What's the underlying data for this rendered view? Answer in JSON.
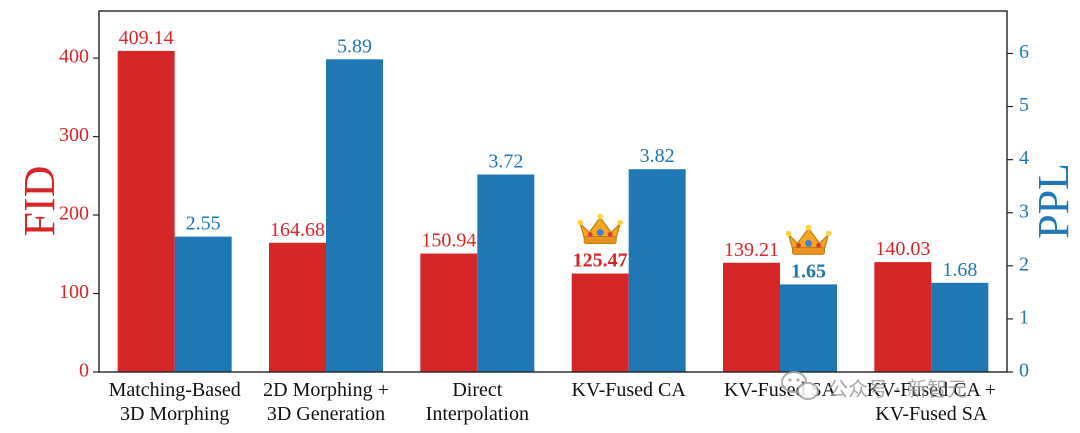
{
  "chart_data": {
    "type": "bar",
    "categories": [
      [
        "Matching-Based",
        "3D Morphing"
      ],
      [
        "2D Morphing +",
        "3D Generation"
      ],
      [
        "Direct",
        "Interpolation"
      ],
      [
        "KV-Fused CA"
      ],
      [
        "KV-Fused SA"
      ],
      [
        "KV-Fused CA +",
        "KV-Fused SA"
      ]
    ],
    "series": [
      {
        "name": "FID",
        "axis": "left",
        "color": "#d62728",
        "values": [
          409.14,
          164.68,
          150.94,
          125.47,
          139.21,
          140.03
        ],
        "labels": [
          "409.14",
          "164.68",
          "150.94",
          "125.47",
          "139.21",
          "140.03"
        ]
      },
      {
        "name": "PPL",
        "axis": "right",
        "color": "#1f77b4",
        "values": [
          2.55,
          5.89,
          3.72,
          3.82,
          1.65,
          1.68
        ],
        "labels": [
          "2.55",
          "5.89",
          "3.72",
          "3.82",
          "1.65",
          "1.68"
        ]
      }
    ],
    "best": {
      "FID_index": 3,
      "PPL_index": 4
    },
    "y_left": {
      "label": "FID",
      "ylim": [
        0,
        460
      ],
      "ticks": [
        "0",
        "100",
        "200",
        "300",
        "400"
      ],
      "color": "#d62728"
    },
    "y_right": {
      "label": "PPL",
      "ylim": [
        0,
        6.8
      ],
      "ticks": [
        "0",
        "1",
        "2",
        "3",
        "4",
        "5",
        "6"
      ],
      "color": "#1f77b4"
    },
    "grid": false,
    "annotations": [
      {
        "icon": "crown-icon",
        "series": "FID",
        "index": 3
      },
      {
        "icon": "crown-icon",
        "series": "PPL",
        "index": 4
      }
    ]
  },
  "watermark": {
    "text": "公众号 · 新智元",
    "icon": "wechat-icon"
  }
}
